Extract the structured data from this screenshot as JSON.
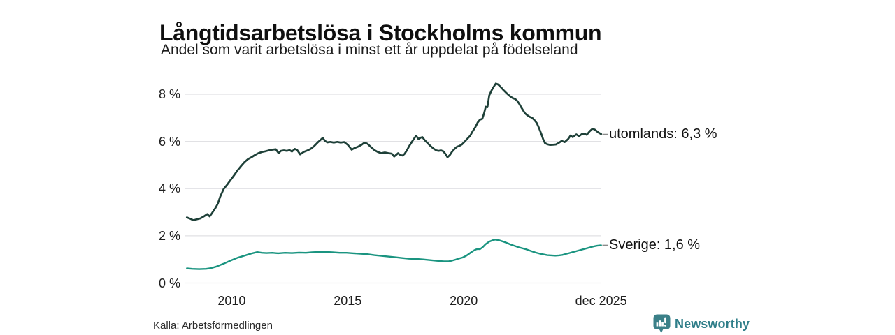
{
  "colors": {
    "background": "#ffffff",
    "grid": "#e1e1e4",
    "series_utomlands": "#1e4038",
    "series_sverige": "#1a9480",
    "connector_dash": "#8a8a8a",
    "brand_teal": "#2f7e89",
    "logo_fill": "#3b8088"
  },
  "footer": {
    "source": "Källa: Arbetsförmedlingen",
    "brand_name": "Newsworthy"
  },
  "chart_data": {
    "type": "line",
    "title": "Långtidsarbetslösa i Stockholms kommun",
    "subtitle": "Andel som varit arbetslösa i minst ett år uppdelat på födelseland",
    "xlim": [
      2008.0,
      2025.93
    ],
    "ylim": [
      0,
      8
    ],
    "grid": "horizontal-only",
    "legend_position": "right-end-labels",
    "yticks": [
      {
        "label": "0 %",
        "v": 0
      },
      {
        "label": "2 %",
        "v": 2
      },
      {
        "label": "4 %",
        "v": 4
      },
      {
        "label": "6 %",
        "v": 6
      },
      {
        "label": "8 %",
        "v": 8
      }
    ],
    "xticks": [
      {
        "label": "2010",
        "t": 2010
      },
      {
        "label": "2015",
        "t": 2015
      },
      {
        "label": "2020",
        "t": 2020
      },
      {
        "label": "dec 2025",
        "t": 2025.92
      }
    ],
    "annotations": [
      {
        "text": "utomlands: 6,3 %",
        "v": 6.3
      },
      {
        "text": "Sverige: 1,6 %",
        "v": 1.6
      }
    ],
    "series": [
      {
        "name": "utomlands",
        "end_value_label": "6,3 %",
        "color": "#1e4038",
        "stroke_width": 2.7,
        "points": [
          [
            2008.07,
            2.78
          ],
          [
            2008.2,
            2.73
          ],
          [
            2008.35,
            2.66
          ],
          [
            2008.5,
            2.7
          ],
          [
            2008.65,
            2.74
          ],
          [
            2008.8,
            2.82
          ],
          [
            2008.95,
            2.92
          ],
          [
            2009.05,
            2.82
          ],
          [
            2009.15,
            2.96
          ],
          [
            2009.3,
            3.18
          ],
          [
            2009.4,
            3.36
          ],
          [
            2009.5,
            3.65
          ],
          [
            2009.65,
            3.98
          ],
          [
            2009.8,
            4.16
          ],
          [
            2009.95,
            4.36
          ],
          [
            2010.1,
            4.56
          ],
          [
            2010.25,
            4.77
          ],
          [
            2010.4,
            4.95
          ],
          [
            2010.55,
            5.12
          ],
          [
            2010.7,
            5.25
          ],
          [
            2010.85,
            5.33
          ],
          [
            2011.0,
            5.42
          ],
          [
            2011.15,
            5.5
          ],
          [
            2011.3,
            5.55
          ],
          [
            2011.45,
            5.58
          ],
          [
            2011.6,
            5.62
          ],
          [
            2011.75,
            5.65
          ],
          [
            2011.9,
            5.67
          ],
          [
            2012.02,
            5.5
          ],
          [
            2012.12,
            5.6
          ],
          [
            2012.25,
            5.62
          ],
          [
            2012.38,
            5.6
          ],
          [
            2012.5,
            5.63
          ],
          [
            2012.6,
            5.57
          ],
          [
            2012.72,
            5.68
          ],
          [
            2012.82,
            5.64
          ],
          [
            2012.95,
            5.45
          ],
          [
            2013.1,
            5.55
          ],
          [
            2013.25,
            5.61
          ],
          [
            2013.4,
            5.68
          ],
          [
            2013.55,
            5.8
          ],
          [
            2013.7,
            5.95
          ],
          [
            2013.85,
            6.08
          ],
          [
            2013.92,
            6.15
          ],
          [
            2014.02,
            6.02
          ],
          [
            2014.12,
            5.96
          ],
          [
            2014.25,
            5.98
          ],
          [
            2014.4,
            5.95
          ],
          [
            2014.55,
            5.98
          ],
          [
            2014.7,
            5.95
          ],
          [
            2014.85,
            5.97
          ],
          [
            2015.0,
            5.86
          ],
          [
            2015.1,
            5.74
          ],
          [
            2015.17,
            5.65
          ],
          [
            2015.3,
            5.72
          ],
          [
            2015.45,
            5.78
          ],
          [
            2015.6,
            5.86
          ],
          [
            2015.72,
            5.95
          ],
          [
            2015.85,
            5.9
          ],
          [
            2016.0,
            5.76
          ],
          [
            2016.15,
            5.63
          ],
          [
            2016.3,
            5.55
          ],
          [
            2016.45,
            5.5
          ],
          [
            2016.6,
            5.53
          ],
          [
            2016.75,
            5.5
          ],
          [
            2016.9,
            5.48
          ],
          [
            2017.0,
            5.36
          ],
          [
            2017.1,
            5.44
          ],
          [
            2017.17,
            5.5
          ],
          [
            2017.27,
            5.42
          ],
          [
            2017.37,
            5.4
          ],
          [
            2017.45,
            5.47
          ],
          [
            2017.55,
            5.62
          ],
          [
            2017.65,
            5.8
          ],
          [
            2017.78,
            6.0
          ],
          [
            2017.88,
            6.15
          ],
          [
            2017.95,
            6.24
          ],
          [
            2018.05,
            6.1
          ],
          [
            2018.15,
            6.16
          ],
          [
            2018.22,
            6.18
          ],
          [
            2018.32,
            6.05
          ],
          [
            2018.42,
            5.95
          ],
          [
            2018.52,
            5.85
          ],
          [
            2018.62,
            5.76
          ],
          [
            2018.72,
            5.68
          ],
          [
            2018.82,
            5.62
          ],
          [
            2018.92,
            5.6
          ],
          [
            2019.02,
            5.62
          ],
          [
            2019.12,
            5.58
          ],
          [
            2019.22,
            5.46
          ],
          [
            2019.3,
            5.33
          ],
          [
            2019.4,
            5.42
          ],
          [
            2019.5,
            5.57
          ],
          [
            2019.62,
            5.7
          ],
          [
            2019.72,
            5.78
          ],
          [
            2019.82,
            5.81
          ],
          [
            2019.92,
            5.87
          ],
          [
            2020.05,
            6.0
          ],
          [
            2020.18,
            6.14
          ],
          [
            2020.28,
            6.24
          ],
          [
            2020.38,
            6.42
          ],
          [
            2020.5,
            6.6
          ],
          [
            2020.6,
            6.8
          ],
          [
            2020.7,
            6.92
          ],
          [
            2020.8,
            6.96
          ],
          [
            2020.88,
            7.2
          ],
          [
            2020.95,
            7.47
          ],
          [
            2021.02,
            7.45
          ],
          [
            2021.1,
            7.95
          ],
          [
            2021.2,
            8.16
          ],
          [
            2021.3,
            8.33
          ],
          [
            2021.38,
            8.45
          ],
          [
            2021.47,
            8.42
          ],
          [
            2021.55,
            8.35
          ],
          [
            2021.63,
            8.27
          ],
          [
            2021.72,
            8.17
          ],
          [
            2021.82,
            8.07
          ],
          [
            2021.92,
            7.98
          ],
          [
            2022.02,
            7.9
          ],
          [
            2022.12,
            7.83
          ],
          [
            2022.22,
            7.8
          ],
          [
            2022.32,
            7.7
          ],
          [
            2022.4,
            7.58
          ],
          [
            2022.48,
            7.44
          ],
          [
            2022.57,
            7.3
          ],
          [
            2022.65,
            7.18
          ],
          [
            2022.75,
            7.1
          ],
          [
            2022.85,
            7.04
          ],
          [
            2022.95,
            7.0
          ],
          [
            2023.05,
            6.9
          ],
          [
            2023.15,
            6.78
          ],
          [
            2023.25,
            6.55
          ],
          [
            2023.35,
            6.3
          ],
          [
            2023.42,
            6.1
          ],
          [
            2023.5,
            5.93
          ],
          [
            2023.6,
            5.88
          ],
          [
            2023.72,
            5.85
          ],
          [
            2023.85,
            5.86
          ],
          [
            2023.97,
            5.87
          ],
          [
            2024.1,
            5.94
          ],
          [
            2024.22,
            6.02
          ],
          [
            2024.35,
            5.97
          ],
          [
            2024.5,
            6.1
          ],
          [
            2024.6,
            6.25
          ],
          [
            2024.7,
            6.18
          ],
          [
            2024.85,
            6.3
          ],
          [
            2024.97,
            6.22
          ],
          [
            2025.1,
            6.32
          ],
          [
            2025.2,
            6.33
          ],
          [
            2025.3,
            6.28
          ],
          [
            2025.42,
            6.42
          ],
          [
            2025.55,
            6.54
          ],
          [
            2025.65,
            6.5
          ],
          [
            2025.8,
            6.38
          ],
          [
            2025.92,
            6.31
          ]
        ]
      },
      {
        "name": "Sverige",
        "end_value_label": "1,6 %",
        "color": "#1a9480",
        "stroke_width": 2.4,
        "points": [
          [
            2008.07,
            0.62
          ],
          [
            2008.3,
            0.6
          ],
          [
            2008.6,
            0.59
          ],
          [
            2008.9,
            0.6
          ],
          [
            2009.1,
            0.63
          ],
          [
            2009.35,
            0.7
          ],
          [
            2009.65,
            0.82
          ],
          [
            2009.95,
            0.95
          ],
          [
            2010.25,
            1.07
          ],
          [
            2010.55,
            1.16
          ],
          [
            2010.85,
            1.25
          ],
          [
            2011.1,
            1.31
          ],
          [
            2011.3,
            1.28
          ],
          [
            2011.5,
            1.27
          ],
          [
            2011.75,
            1.28
          ],
          [
            2012.0,
            1.26
          ],
          [
            2012.3,
            1.28
          ],
          [
            2012.6,
            1.27
          ],
          [
            2012.9,
            1.29
          ],
          [
            2013.2,
            1.28
          ],
          [
            2013.45,
            1.3
          ],
          [
            2013.75,
            1.32
          ],
          [
            2014.05,
            1.32
          ],
          [
            2014.35,
            1.3
          ],
          [
            2014.65,
            1.28
          ],
          [
            2014.95,
            1.28
          ],
          [
            2015.25,
            1.26
          ],
          [
            2015.55,
            1.24
          ],
          [
            2015.85,
            1.22
          ],
          [
            2016.15,
            1.18
          ],
          [
            2016.45,
            1.15
          ],
          [
            2016.75,
            1.12
          ],
          [
            2017.05,
            1.09
          ],
          [
            2017.35,
            1.06
          ],
          [
            2017.65,
            1.03
          ],
          [
            2017.95,
            1.02
          ],
          [
            2018.25,
            1.0
          ],
          [
            2018.55,
            0.97
          ],
          [
            2018.85,
            0.94
          ],
          [
            2019.15,
            0.92
          ],
          [
            2019.35,
            0.92
          ],
          [
            2019.5,
            0.95
          ],
          [
            2019.65,
            0.99
          ],
          [
            2019.8,
            1.04
          ],
          [
            2019.95,
            1.08
          ],
          [
            2020.1,
            1.15
          ],
          [
            2020.22,
            1.23
          ],
          [
            2020.32,
            1.3
          ],
          [
            2020.42,
            1.37
          ],
          [
            2020.52,
            1.42
          ],
          [
            2020.6,
            1.44
          ],
          [
            2020.7,
            1.43
          ],
          [
            2020.82,
            1.52
          ],
          [
            2020.95,
            1.65
          ],
          [
            2021.1,
            1.75
          ],
          [
            2021.25,
            1.81
          ],
          [
            2021.35,
            1.84
          ],
          [
            2021.5,
            1.82
          ],
          [
            2021.62,
            1.78
          ],
          [
            2021.75,
            1.74
          ],
          [
            2021.88,
            1.69
          ],
          [
            2022.02,
            1.63
          ],
          [
            2022.2,
            1.57
          ],
          [
            2022.35,
            1.52
          ],
          [
            2022.5,
            1.48
          ],
          [
            2022.65,
            1.44
          ],
          [
            2022.8,
            1.39
          ],
          [
            2022.95,
            1.34
          ],
          [
            2023.1,
            1.29
          ],
          [
            2023.3,
            1.24
          ],
          [
            2023.45,
            1.21
          ],
          [
            2023.6,
            1.18
          ],
          [
            2023.78,
            1.17
          ],
          [
            2023.95,
            1.16
          ],
          [
            2024.1,
            1.17
          ],
          [
            2024.25,
            1.19
          ],
          [
            2024.4,
            1.23
          ],
          [
            2024.55,
            1.27
          ],
          [
            2024.7,
            1.31
          ],
          [
            2024.85,
            1.35
          ],
          [
            2025.0,
            1.39
          ],
          [
            2025.15,
            1.43
          ],
          [
            2025.3,
            1.47
          ],
          [
            2025.45,
            1.51
          ],
          [
            2025.6,
            1.55
          ],
          [
            2025.75,
            1.58
          ],
          [
            2025.92,
            1.6
          ]
        ]
      }
    ]
  }
}
